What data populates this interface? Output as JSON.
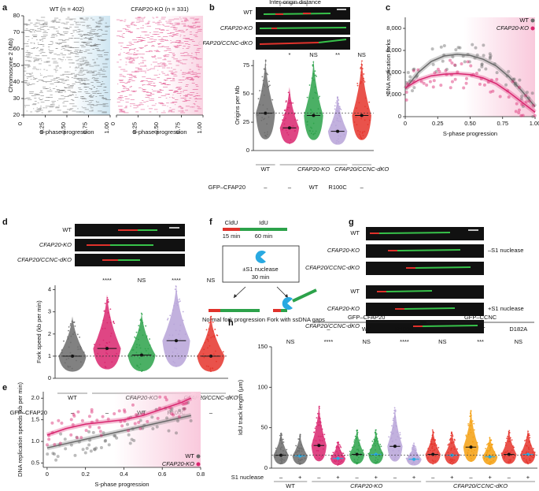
{
  "panel_labels": [
    "a",
    "b",
    "c",
    "d",
    "e",
    "f",
    "g",
    "h"
  ],
  "images": {
    "b": {
      "caption": "Inter-origin distance",
      "rows": [
        "WT",
        "CFAP20-KO",
        "CFAP20/CCNC-dKO"
      ]
    },
    "d": {
      "rows": [
        "WT",
        "CFAP20-KO",
        "CFAP20/CCNC-dKO"
      ]
    },
    "g": {
      "rows": [
        "WT",
        "CFAP20-KO",
        "CFAP20/CCNC-dKO",
        "WT",
        "CFAP20-KO",
        "CFAP20/CCNC-dKO"
      ],
      "treatments": [
        "–S1 nuclease",
        "+S1 nuclease"
      ]
    }
  },
  "diagram": {
    "labels": [
      "CldU",
      "IdU"
    ],
    "times": [
      "15 min",
      "60 min"
    ],
    "box": [
      "±S1 nuclease",
      "30 min"
    ],
    "outcomes": [
      "Normal fork progression",
      "Fork with ssDNA gaps"
    ]
  },
  "chart_data": [
    {
      "type": "raster",
      "title": "WT (n = 402)",
      "ylabel": "Chromosome 2 (Mb)",
      "xlabel": "S-phase progression",
      "xlim": [
        0,
        1
      ],
      "ylim": [
        20,
        80
      ],
      "xticks": [
        0,
        0.25,
        {
          "value": 0.5,
          "label": "0.50"
        },
        0.75,
        {
          "value": 1,
          "label": "1.00"
        }
      ],
      "yticks": [
        20,
        30,
        40,
        50,
        60,
        70,
        80
      ],
      "color": "#555555",
      "shade": "#cfe6f2"
    },
    {
      "type": "raster",
      "title": "CFAP20-KO (n = 331)",
      "xlabel": "S-phase progression",
      "xlim": [
        0,
        1
      ],
      "ylim": [
        20,
        80
      ],
      "xticks": [
        0,
        0.25,
        {
          "value": 0.5,
          "label": "0.50"
        },
        0.75,
        {
          "value": 1,
          "label": "1.00"
        }
      ],
      "color": "#d9266f",
      "shade": "#f9d3e2"
    },
    {
      "type": "strip",
      "ylabel": "Origins per Mb",
      "ylim": [
        0,
        80
      ],
      "yticks": [
        0,
        25,
        50,
        75
      ],
      "reference_line": 33,
      "values": [
        33,
        20,
        31,
        17,
        31
      ],
      "colors": [
        "#6b6b6b",
        "#d9266f",
        "#2ca24a",
        "#b7a3d8",
        "#e5342b"
      ],
      "significance": [
        null,
        "*",
        "NS",
        "**",
        "NS"
      ],
      "rows": [
        {
          "label": "GFP–CFAP20",
          "values": [
            "–",
            "–",
            "WT",
            "R100C",
            "–"
          ]
        }
      ],
      "groups": [
        {
          "label": "WT",
          "columns": 1
        },
        {
          "label": "CFAP20-KO",
          "columns": 3
        },
        {
          "label": "CFAP20/CCNC-dKO",
          "columns": 1
        }
      ]
    },
    {
      "type": "line",
      "ylabel": "DNA replication forks",
      "xlabel": "S-phase progression",
      "xlim": [
        0,
        1
      ],
      "ylim": [
        0,
        9000
      ],
      "xticks": [
        0,
        0.25,
        {
          "value": 0.5,
          "label": "0.50"
        },
        0.75,
        {
          "value": 1,
          "label": "1.00"
        }
      ],
      "yticks": [
        0,
        {
          "value": 2000,
          "label": "2,000"
        },
        {
          "value": 4000,
          "label": "4,000"
        },
        {
          "value": 6000,
          "label": "6,000"
        },
        {
          "value": 8000,
          "label": "8,000"
        }
      ],
      "legend": "top-right",
      "shade": "#f9c9dc",
      "x": [
        0,
        0.1,
        0.2,
        0.3,
        0.4,
        0.5,
        0.6,
        0.7,
        0.8,
        0.9,
        1
      ],
      "series": [
        {
          "name": "WT",
          "color": "#6b6b6b",
          "values": [
            2500,
            4000,
            5000,
            5500,
            5650,
            5550,
            5200,
            4600,
            3600,
            2300,
            900
          ]
        },
        {
          "name": "CFAP20-KO",
          "color": "#d9266f",
          "values": [
            2600,
            3300,
            3700,
            3850,
            3900,
            3800,
            3500,
            3000,
            2200,
            1300,
            400
          ]
        }
      ]
    },
    {
      "type": "strip",
      "ylabel": "Fork speed (kb per min)",
      "ylim": [
        0,
        4.2
      ],
      "yticks": [
        0,
        1,
        2,
        3,
        4
      ],
      "reference_line": 1,
      "values": [
        1.0,
        1.35,
        1.05,
        1.7,
        1.0
      ],
      "colors": [
        "#6b6b6b",
        "#d9266f",
        "#2ca24a",
        "#b7a3d8",
        "#e5342b"
      ],
      "significance": [
        null,
        "****",
        "NS",
        "****",
        "NS"
      ],
      "rows": [
        {
          "label": "GFP–CFAP20",
          "values": [
            "–",
            "–",
            "WT",
            "R100C",
            "–"
          ]
        }
      ],
      "groups": [
        {
          "label": "WT",
          "columns": 1
        },
        {
          "label": "CFAP20-KO",
          "columns": 3
        },
        {
          "label": "CFAP20/CCNC-dKO",
          "columns": 1
        }
      ]
    },
    {
      "type": "line",
      "ylabel": "DNA replication speeds (kb per min)",
      "xlabel": "S-phase progression",
      "xlim": [
        -0.02,
        0.8
      ],
      "ylim": [
        0.4,
        2.15
      ],
      "xticks": [
        0,
        0.2,
        0.4,
        0.6,
        0.8
      ],
      "yticks": [
        0.5,
        {
          "value": 1,
          "label": "1.0"
        },
        1.5,
        {
          "value": 2,
          "label": "2.0"
        }
      ],
      "legend": "bottom-right",
      "shade": "#f9c9dc",
      "x": [
        0,
        0.1,
        0.2,
        0.3,
        0.4,
        0.5,
        0.6,
        0.7,
        0.75
      ],
      "series": [
        {
          "name": "WT",
          "color": "#6b6b6b",
          "values": [
            0.85,
            0.95,
            1.05,
            1.15,
            1.25,
            1.35,
            1.45,
            1.55,
            1.6
          ]
        },
        {
          "name": "CFAP20-KO",
          "color": "#d9266f",
          "values": [
            1.15,
            1.3,
            1.4,
            1.45,
            1.5,
            1.6,
            1.75,
            1.9,
            2.0
          ]
        }
      ]
    },
    {
      "type": "strip",
      "ylabel": "IdU track length (μm)",
      "ylim": [
        0,
        150
      ],
      "yticks": [
        0,
        50,
        100,
        150
      ],
      "reference_line": 16,
      "values": [
        16,
        15,
        28,
        12,
        17,
        17,
        27,
        11,
        17,
        16,
        26,
        14,
        17,
        17
      ],
      "colors": [
        "#6b6b6b",
        "#6b6b6b",
        "#d9266f",
        "#d9266f",
        "#2ca24a",
        "#2ca24a",
        "#b7a3d8",
        "#b7a3d8",
        "#e5342b",
        "#e5342b",
        "#f5a011",
        "#f5a011",
        "#e5342b",
        "#e5342b"
      ],
      "plus_marker_color": "#29a9e1",
      "significance": [
        "NS",
        "****",
        "NS",
        "****",
        "NS",
        "***",
        "NS"
      ],
      "headers": [
        {
          "label": "GFP–CFAP20",
          "items": [
            "–",
            "WT",
            "R100C"
          ]
        },
        {
          "label": "GFP–CCNC",
          "items": [
            "–",
            "WT",
            "D182A"
          ]
        }
      ],
      "rows": [
        {
          "label": "S1 nuclease",
          "values": [
            "–",
            "+",
            "–",
            "+",
            "–",
            "+",
            "–",
            "+",
            "–",
            "+",
            "–",
            "+",
            "–",
            "+"
          ]
        }
      ],
      "groups": [
        {
          "label": "WT",
          "columns": 2
        },
        {
          "label": "CFAP20-KO",
          "columns": 6
        },
        {
          "label": "CFAP20/CCNC-dKO",
          "columns": 6
        }
      ]
    }
  ]
}
